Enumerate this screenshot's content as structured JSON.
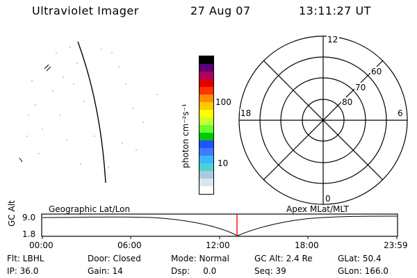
{
  "header": {
    "title": "Ultraviolet Imager",
    "date": "27 Aug 07",
    "time": "13:11:27 UT"
  },
  "colorbar": {
    "label": "photon cm⁻²s⁻¹",
    "ticks": [
      "100",
      "10"
    ],
    "colors": [
      "#ffffff",
      "#d9e6ee",
      "#a8ccd9",
      "#4fd1d4",
      "#39b8ff",
      "#3f7bff",
      "#1f55ff",
      "#00c800",
      "#66ff33",
      "#c8ff33",
      "#ffff00",
      "#ffc800",
      "#ff8c00",
      "#ff3300",
      "#e00000",
      "#b00060",
      "#5a0078",
      "#000000"
    ]
  },
  "polar_plot": {
    "mlt_labels": [
      "12",
      "18",
      "6",
      "0"
    ],
    "lat_labels": [
      "60",
      "70",
      "80"
    ]
  },
  "timeline": {
    "y_axis_label": "GC Alt",
    "y_ticks": [
      "9.0",
      "1.8"
    ],
    "left_label": "Geographic Lat/Lon",
    "right_label": "Apex MLat/MLT",
    "x_ticks": [
      "00:00",
      "06:00",
      "12:00",
      "18:00",
      "23:59"
    ],
    "marker_color": "#ff0000"
  },
  "status": {
    "row1": {
      "flt": "Flt: LBHL",
      "door": "Door: Closed",
      "mode": "Mode: Normal",
      "gcalt": "GC Alt: 2.4 Re",
      "glat": "GLat: 50.4"
    },
    "row2": {
      "ip": "IP: 36.0",
      "gain": "Gain: 14",
      "dsp": "Dsp:     0.0",
      "seq": "Seq: 39",
      "glon": "GLon: 166.0"
    }
  }
}
